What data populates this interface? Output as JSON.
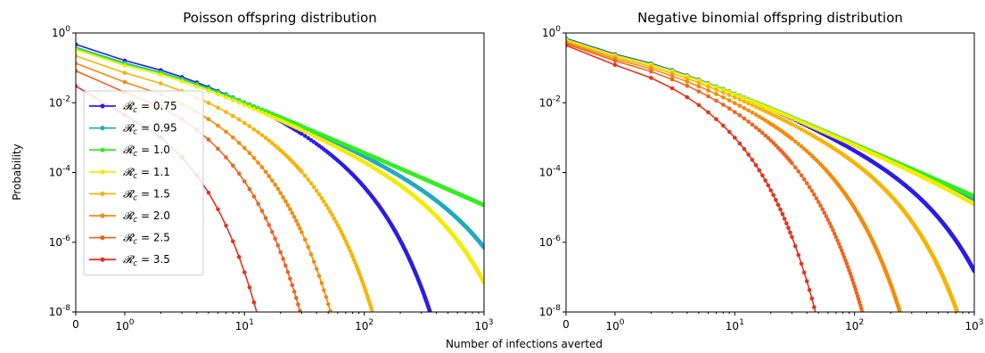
{
  "figure": {
    "shared_xlabel": "Number of infections averted"
  },
  "chart_data": [
    {
      "type": "line",
      "title": "Poisson offspring distribution",
      "ylabel": "Probability",
      "xlabel": "",
      "xscale": "symlog",
      "yscale": "log",
      "xlim": [
        0,
        1000
      ],
      "ylim": [
        1e-08,
        1
      ],
      "x_ticks": [
        {
          "value": 0,
          "label": "0"
        },
        {
          "value": 1,
          "base": "10",
          "exp": "0"
        },
        {
          "value": 10,
          "base": "10",
          "exp": "1"
        },
        {
          "value": 100,
          "base": "10",
          "exp": "2"
        },
        {
          "value": 1000,
          "base": "10",
          "exp": "3"
        }
      ],
      "y_ticks": [
        {
          "value": 1,
          "base": "10",
          "exp": "0"
        },
        {
          "value": 0.01,
          "base": "10",
          "exp": "-2"
        },
        {
          "value": 0.0001,
          "base": "10",
          "exp": "-4"
        },
        {
          "value": 1e-06,
          "base": "10",
          "exp": "-6"
        },
        {
          "value": 1e-08,
          "base": "10",
          "exp": "-8"
        }
      ],
      "legend": {
        "position": "lower-left",
        "label_prefix": "𝓡",
        "label_sub": "c",
        "label_eq": " = "
      },
      "series": [
        {
          "name": "0.75",
          "color": "#2b1de8",
          "params": {
            "p0": 0.47,
            "slope": 1.5,
            "cutoff": 40
          }
        },
        {
          "name": "0.95",
          "color": "#22aac2",
          "params": {
            "p0": 0.39,
            "slope": 1.5,
            "cutoff": 350
          }
        },
        {
          "name": "1.0",
          "color": "#33ee22",
          "params": {
            "p0": 0.37,
            "slope": 1.5,
            "cutoff": 100000
          }
        },
        {
          "name": "1.1",
          "color": "#f4ec00",
          "params": {
            "p0": 0.33,
            "slope": 1.5,
            "cutoff": 200
          }
        },
        {
          "name": "1.5",
          "color": "#f7b400",
          "params": {
            "p0": 0.22,
            "slope": 1.5,
            "cutoff": 12
          }
        },
        {
          "name": "2.0",
          "color": "#f58a0a",
          "params": {
            "p0": 0.135,
            "slope": 1.5,
            "cutoff": 5
          }
        },
        {
          "name": "2.5",
          "color": "#ef6420",
          "params": {
            "p0": 0.082,
            "slope": 1.5,
            "cutoff": 2.7
          }
        },
        {
          "name": "3.5",
          "color": "#e8321d",
          "params": {
            "p0": 0.03,
            "slope": 1.5,
            "cutoff": 1.15
          }
        }
      ]
    },
    {
      "type": "line",
      "title": "Negative binomial offspring distribution",
      "ylabel": "",
      "xlabel": "",
      "xscale": "symlog",
      "yscale": "log",
      "xlim": [
        0,
        1000
      ],
      "ylim": [
        1e-08,
        1
      ],
      "x_ticks": [
        {
          "value": 0,
          "label": "0"
        },
        {
          "value": 1,
          "base": "10",
          "exp": "0"
        },
        {
          "value": 10,
          "base": "10",
          "exp": "1"
        },
        {
          "value": 100,
          "base": "10",
          "exp": "2"
        },
        {
          "value": 1000,
          "base": "10",
          "exp": "3"
        }
      ],
      "y_ticks": [
        {
          "value": 1,
          "base": "10",
          "exp": "0"
        },
        {
          "value": 0.01,
          "base": "10",
          "exp": "-2"
        },
        {
          "value": 0.0001,
          "base": "10",
          "exp": "-4"
        },
        {
          "value": 1e-06,
          "base": "10",
          "exp": "-6"
        },
        {
          "value": 1e-08,
          "base": "10",
          "exp": "-8"
        }
      ],
      "series": [
        {
          "name": "0.75",
          "color": "#2b1de8",
          "params": {
            "p0": 0.7,
            "slope": 1.5,
            "cutoff": 200
          }
        },
        {
          "name": "0.95",
          "color": "#22aac2",
          "params": {
            "p0": 0.67,
            "slope": 1.5,
            "cutoff": 5000
          }
        },
        {
          "name": "1.0",
          "color": "#33ee22",
          "params": {
            "p0": 0.66,
            "slope": 1.5,
            "cutoff": 100000
          }
        },
        {
          "name": "1.1",
          "color": "#f4ec00",
          "params": {
            "p0": 0.64,
            "slope": 1.5,
            "cutoff": 2000
          }
        },
        {
          "name": "1.5",
          "color": "#f7b400",
          "params": {
            "p0": 0.58,
            "slope": 1.5,
            "cutoff": 90
          }
        },
        {
          "name": "2.0",
          "color": "#f58a0a",
          "params": {
            "p0": 0.53,
            "slope": 1.5,
            "cutoff": 25
          }
        },
        {
          "name": "2.5",
          "color": "#ef6420",
          "params": {
            "p0": 0.49,
            "slope": 1.5,
            "cutoff": 11
          }
        },
        {
          "name": "3.5",
          "color": "#e8321d",
          "params": {
            "p0": 0.44,
            "slope": 1.5,
            "cutoff": 4
          }
        }
      ]
    }
  ]
}
